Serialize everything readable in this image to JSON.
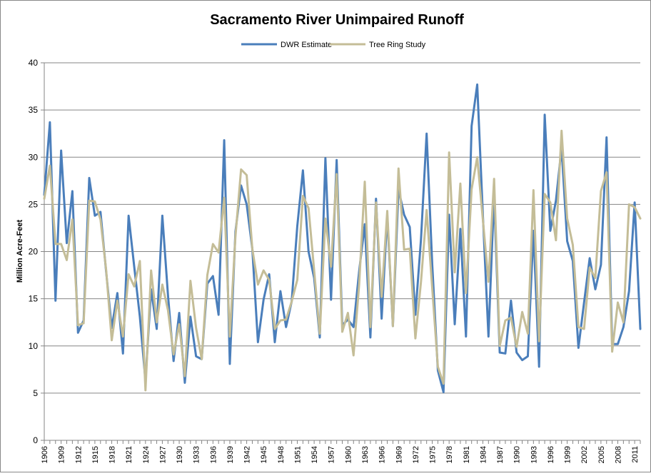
{
  "chart_data": {
    "type": "line",
    "title": "Sacramento River Unimpaired Runoff",
    "xlabel": "",
    "ylabel": "Million Acre-Feet",
    "ylim": [
      0,
      40
    ],
    "yticks": [
      0,
      5,
      10,
      15,
      20,
      25,
      30,
      35,
      40
    ],
    "x": [
      1906,
      1907,
      1908,
      1909,
      1910,
      1911,
      1912,
      1913,
      1914,
      1915,
      1916,
      1917,
      1918,
      1919,
      1920,
      1921,
      1922,
      1923,
      1924,
      1925,
      1926,
      1927,
      1928,
      1929,
      1930,
      1931,
      1932,
      1933,
      1934,
      1935,
      1936,
      1937,
      1938,
      1939,
      1940,
      1941,
      1942,
      1943,
      1944,
      1945,
      1946,
      1947,
      1948,
      1949,
      1950,
      1951,
      1952,
      1953,
      1954,
      1955,
      1956,
      1957,
      1958,
      1959,
      1960,
      1961,
      1962,
      1963,
      1964,
      1965,
      1966,
      1967,
      1968,
      1969,
      1970,
      1971,
      1972,
      1973,
      1974,
      1975,
      1976,
      1977,
      1978,
      1979,
      1980,
      1981,
      1982,
      1983,
      1984,
      1985,
      1986,
      1987,
      1988,
      1989,
      1990,
      1991,
      1992,
      1993,
      1994,
      1995,
      1996,
      1997,
      1998,
      1999,
      2000,
      2001,
      2002,
      2003,
      2004,
      2005,
      2006,
      2007,
      2008,
      2009,
      2010,
      2011,
      2012
    ],
    "xtick_labels": [
      "1906",
      "1909",
      "1912",
      "1915",
      "1918",
      "1921",
      "1924",
      "1927",
      "1930",
      "1933",
      "1936",
      "1939",
      "1942",
      "1945",
      "1948",
      "1951",
      "1954",
      "1957",
      "1960",
      "1963",
      "1966",
      "1969",
      "1972",
      "1975",
      "1978",
      "1981",
      "1984",
      "1987",
      "1990",
      "1993",
      "1996",
      "1999",
      "2002",
      "2005",
      "2008",
      "2011"
    ],
    "series": [
      {
        "name": "DWR Estimate",
        "color": "#4a7ebb",
        "values": [
          26.0,
          33.7,
          14.8,
          30.7,
          20.9,
          26.4,
          11.4,
          12.7,
          27.8,
          23.8,
          24.2,
          17.9,
          11.9,
          15.6,
          9.2,
          23.8,
          18.4,
          13.1,
          6.3,
          16.0,
          11.8,
          23.8,
          15.4,
          8.4,
          13.5,
          6.1,
          13.1,
          8.9,
          8.6,
          16.6,
          17.4,
          13.3,
          31.8,
          8.1,
          22.1,
          27.0,
          25.0,
          20.3,
          10.4,
          14.9,
          17.6,
          10.4,
          15.8,
          12.0,
          14.7,
          22.7,
          28.6,
          20.0,
          17.2,
          10.9,
          29.9,
          14.9,
          29.7,
          12.2,
          12.8,
          12.0,
          17.9,
          22.9,
          10.9,
          25.6,
          12.9,
          23.8,
          12.1,
          26.6,
          23.9,
          22.6,
          13.3,
          21.3,
          32.5,
          18.6,
          7.4,
          5.1,
          23.9,
          12.3,
          22.4,
          11.0,
          33.3,
          37.7,
          23.9,
          11.0,
          26.0,
          9.3,
          9.2,
          14.8,
          9.3,
          8.5,
          8.9,
          22.2,
          7.8,
          34.5,
          22.2,
          25.4,
          31.0,
          21.1,
          19.0,
          9.8,
          14.6,
          19.3,
          16.0,
          18.6,
          32.1,
          10.2,
          10.2,
          12.0,
          15.8,
          25.2,
          11.8
        ]
      },
      {
        "name": "Tree Ring Study",
        "color": "#c4bd97",
        "values": [
          25.6,
          29.1,
          20.8,
          20.8,
          19.1,
          23.4,
          12.2,
          12.4,
          25.4,
          25.3,
          23.4,
          18.1,
          10.6,
          14.8,
          11.0,
          17.6,
          16.3,
          19.0,
          5.3,
          18.0,
          12.5,
          16.5,
          13.8,
          9.1,
          12.3,
          6.8,
          16.9,
          11.9,
          8.6,
          17.5,
          20.8,
          19.9,
          25.7,
          11.0,
          21.6,
          28.7,
          28.1,
          20.3,
          16.5,
          18.0,
          17.0,
          11.8,
          12.7,
          12.8,
          14.7,
          17.0,
          25.9,
          24.6,
          18.0,
          11.3,
          23.5,
          18.4,
          28.2,
          11.5,
          13.5,
          9.0,
          16.5,
          27.4,
          12.0,
          25.2,
          15.2,
          24.3,
          12.1,
          28.8,
          20.2,
          20.3,
          10.8,
          16.8,
          24.4,
          16.1,
          7.8,
          6.0,
          30.5,
          17.8,
          27.2,
          15.6,
          26.6,
          30.0,
          23.4,
          16.8,
          27.7,
          10.0,
          12.7,
          13.0,
          9.9,
          13.6,
          11.3,
          26.5,
          10.5,
          26.1,
          25.2,
          21.2,
          32.8,
          23.5,
          20.7,
          12.0,
          11.8,
          18.3,
          17.2,
          26.4,
          28.4,
          9.4,
          14.6,
          12.5,
          25.0,
          24.7,
          23.5
        ]
      }
    ],
    "grid": true,
    "legend_position": "top-center"
  }
}
